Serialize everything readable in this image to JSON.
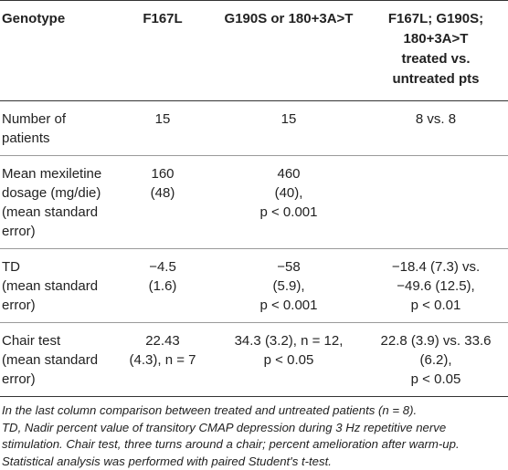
{
  "table": {
    "headers": [
      [
        "Genotype"
      ],
      [
        "F167L"
      ],
      [
        "G190S or 180+3A>T"
      ],
      [
        "F167L; G190S;",
        "180+3A>T",
        "treated vs.",
        "untreated pts"
      ]
    ],
    "rows": [
      {
        "label": [
          "Number of",
          "patients"
        ],
        "c1": [
          "15"
        ],
        "c2": [
          "15"
        ],
        "c3": [
          "8 vs. 8"
        ]
      },
      {
        "label": [
          "Mean mexiletine",
          "dosage (mg/die)",
          "(mean standard",
          "error)"
        ],
        "c1": [
          "160",
          "(48)"
        ],
        "c2": [
          "460",
          "(40),",
          "p < 0.001"
        ],
        "c3": []
      },
      {
        "label": [
          "TD",
          "(mean standard",
          "error)"
        ],
        "c1": [
          "−4.5",
          "(1.6)"
        ],
        "c2": [
          "−58",
          "(5.9),",
          "p < 0.001"
        ],
        "c3": [
          "−18.4 (7.3) vs.",
          "−49.6 (12.5),",
          "p < 0.01"
        ]
      },
      {
        "label": [
          "Chair test",
          "(mean standard",
          "error)"
        ],
        "c1": [
          "22.43",
          "(4.3), n = 7"
        ],
        "c2": [
          "34.3 (3.2), n = 12,",
          "p < 0.05"
        ],
        "c3": [
          "22.8 (3.9) vs. 33.6",
          "(6.2),",
          "p < 0.05"
        ]
      }
    ]
  },
  "notes": [
    "In the last column comparison between treated and untreated patients (n = 8).",
    "TD, Nadir percent value of transitory CMAP depression during 3 Hz repetitive nerve",
    "stimulation. Chair test, three turns around a chair; percent amelioration after warm-up.",
    "Statistical analysis was performed with paired Student's t-test."
  ]
}
